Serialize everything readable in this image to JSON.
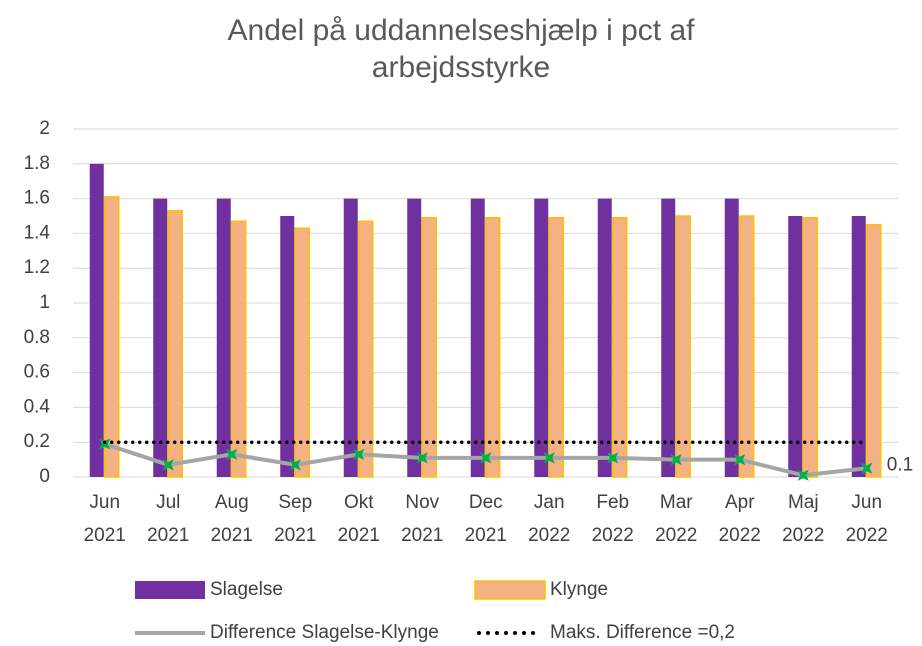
{
  "chart_data": {
    "type": "bar",
    "title": "Andel på uddannelseshjælp i pct af arbejdsstyrke",
    "categories": [
      [
        "Jun",
        "2021"
      ],
      [
        "Jul",
        "2021"
      ],
      [
        "Aug",
        "2021"
      ],
      [
        "Sep",
        "2021"
      ],
      [
        "Okt",
        "2021"
      ],
      [
        "Nov",
        "2021"
      ],
      [
        "Dec",
        "2021"
      ],
      [
        "Jan",
        "2022"
      ],
      [
        "Feb",
        "2022"
      ],
      [
        "Mar",
        "2022"
      ],
      [
        "Apr",
        "2022"
      ],
      [
        "Maj",
        "2022"
      ],
      [
        "Jun",
        "2022"
      ]
    ],
    "series": [
      {
        "name": "Slagelse",
        "type": "bar",
        "color": "#7030a0",
        "values": [
          1.8,
          1.6,
          1.6,
          1.5,
          1.6,
          1.6,
          1.6,
          1.6,
          1.6,
          1.6,
          1.6,
          1.5,
          1.5
        ]
      },
      {
        "name": "Klynge",
        "type": "bar",
        "color": "#f4b183",
        "edge": "#ffc000",
        "values": [
          1.61,
          1.53,
          1.47,
          1.43,
          1.47,
          1.49,
          1.49,
          1.49,
          1.49,
          1.5,
          1.5,
          1.49,
          1.45
        ]
      },
      {
        "name": "Difference Slagelse-Klynge",
        "type": "line",
        "color": "#a5a5a5",
        "marker_color": "#00b050",
        "values": [
          0.19,
          0.07,
          0.13,
          0.07,
          0.13,
          0.11,
          0.11,
          0.11,
          0.11,
          0.1,
          0.1,
          0.01,
          0.05
        ],
        "value_labels": [
          null,
          null,
          null,
          null,
          null,
          null,
          null,
          null,
          null,
          null,
          null,
          null,
          "0.1"
        ]
      },
      {
        "name": "Maks. Difference =0,2",
        "type": "dotted",
        "color": "#000000",
        "values": [
          0.2,
          0.2,
          0.2,
          0.2,
          0.2,
          0.2,
          0.2,
          0.2,
          0.2,
          0.2,
          0.2,
          0.2,
          0.2
        ]
      }
    ],
    "ylim": [
      0,
      2
    ],
    "yticks": [
      0,
      0.2,
      0.4,
      0.6,
      0.8,
      1,
      1.2,
      1.4,
      1.6,
      1.8,
      2
    ],
    "grid": true
  }
}
